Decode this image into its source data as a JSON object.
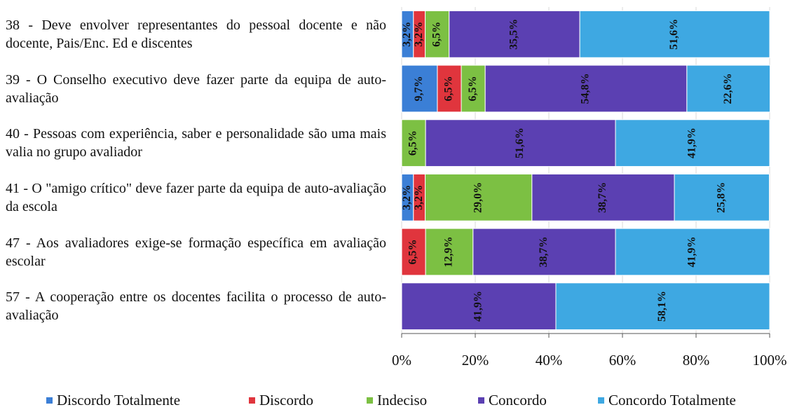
{
  "chart_data": {
    "type": "stacked-bar-horizontal",
    "categories": [
      "38 - Deve envolver representantes do pessoal docente e não docente, Pais/Enc. Ed e discentes",
      "39 - O Conselho executivo deve fazer parte da equipa de auto-avaliação",
      "40 - Pessoas com experiência, saber e personalidade são uma mais valia no grupo avaliador",
      "41 - O \"amigo crítico\" deve fazer parte da equipa de auto-avaliação da escola",
      "47 - Aos avaliadores exige-se formação específica em avaliação escolar",
      "57 - A cooperação entre os docentes facilita o processo de auto-avaliação"
    ],
    "series": [
      {
        "name": "Discordo Totalmente",
        "color": "#3b7fd6",
        "values": [
          3.2,
          9.7,
          0,
          3.2,
          0,
          0
        ],
        "value_labels": [
          "3,2%",
          "9,7%",
          null,
          "3,2%",
          null,
          null
        ]
      },
      {
        "name": "Discordo",
        "color": "#e0353d",
        "values": [
          3.2,
          6.5,
          0,
          3.2,
          6.5,
          0
        ],
        "value_labels": [
          "3,2%",
          "6,5%",
          null,
          "3,2%",
          "6,5%",
          null
        ]
      },
      {
        "name": "Indeciso",
        "color": "#7cc043",
        "values": [
          6.5,
          6.5,
          6.5,
          29.0,
          12.9,
          0
        ],
        "value_labels": [
          "6,5%",
          "6,5%",
          "6,5%",
          "29,0%",
          "12,9%",
          null
        ]
      },
      {
        "name": "Concordo",
        "color": "#5b40b2",
        "values": [
          35.5,
          54.8,
          51.6,
          38.7,
          38.7,
          41.9
        ],
        "value_labels": [
          "35,5%",
          "54,8%",
          "51,6%",
          "38,7%",
          "38,7%",
          "41,9%"
        ]
      },
      {
        "name": "Concordo Totalmente",
        "color": "#3ea8e2",
        "values": [
          51.6,
          22.6,
          41.9,
          25.8,
          41.9,
          58.1
        ],
        "value_labels": [
          "51,6%",
          "22,6%",
          "41,9%",
          "25,8%",
          "41,9%",
          "58,1%"
        ]
      }
    ],
    "xlim": [
      0,
      100
    ],
    "xticks": [
      {
        "value": 0,
        "label": "0%"
      },
      {
        "value": 20,
        "label": "20%"
      },
      {
        "value": 40,
        "label": "40%"
      },
      {
        "value": 60,
        "label": "60%"
      },
      {
        "value": 80,
        "label": "80%"
      },
      {
        "value": 100,
        "label": "100%"
      }
    ],
    "grid": true,
    "legend": "bottom"
  }
}
